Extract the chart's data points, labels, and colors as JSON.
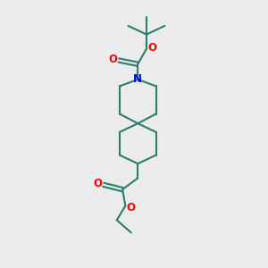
{
  "bg_color": "#ebebeb",
  "bond_color": "#2d7d6e",
  "N_color": "#0000ff",
  "O_color": "#ff0000",
  "bond_width": 1.5,
  "fig_size": [
    3.0,
    3.0
  ],
  "dpi": 100,
  "xlim": [
    0,
    10
  ],
  "ylim": [
    0,
    14
  ]
}
